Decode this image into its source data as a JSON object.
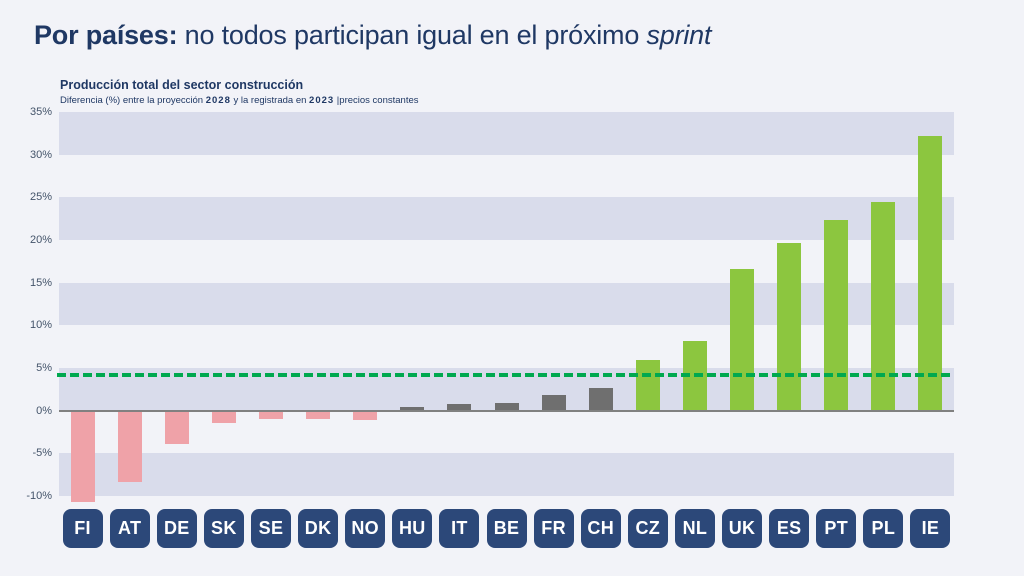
{
  "slide": {
    "title": {
      "bold": "Por países:",
      "regular": " no todos participan igual en el próximo ",
      "italic": "sprint"
    }
  },
  "chart_data": {
    "type": "bar",
    "title": "Producción total del sector construcción",
    "subtitle_parts": [
      "Diferencia (%) entre la proyección ",
      "2028",
      " y la registrada en ",
      "2023",
      " |precios constantes"
    ],
    "categories": [
      "FI",
      "AT",
      "DE",
      "SK",
      "SE",
      "DK",
      "NO",
      "HU",
      "IT",
      "BE",
      "FR",
      "CH",
      "CZ",
      "NL",
      "UK",
      "ES",
      "PT",
      "PL",
      "IE"
    ],
    "values": [
      -10.7,
      -8.4,
      -3.9,
      -1.5,
      -1.0,
      -1.0,
      -1.1,
      0.4,
      0.8,
      0.9,
      1.8,
      2.6,
      5.9,
      8.2,
      16.6,
      19.7,
      22.4,
      24.5,
      32.2
    ],
    "category_groups": [
      "negative",
      "negative",
      "negative",
      "negative",
      "negative",
      "negative",
      "negative",
      "neutral",
      "neutral",
      "neutral",
      "neutral",
      "neutral",
      "positive",
      "positive",
      "positive",
      "positive",
      "positive",
      "positive",
      "positive"
    ],
    "xlabel": "",
    "ylabel": "",
    "ylim": [
      -10,
      35
    ],
    "ytick_step": 5,
    "yticks": [
      35,
      30,
      25,
      20,
      15,
      10,
      5,
      0,
      -5,
      -10
    ],
    "ytick_labels": [
      "35%",
      "30%",
      "25%",
      "20%",
      "15%",
      "10%",
      "5%",
      "0%",
      "-5%",
      "-10%"
    ],
    "grid": "alternating-horizontal-bands",
    "bands": [
      [
        30,
        35
      ],
      [
        20,
        25
      ],
      [
        10,
        15
      ],
      [
        0,
        5
      ],
      [
        -10,
        -5
      ]
    ],
    "legend": "none",
    "reference_line": {
      "value": 4.2,
      "style": "dashed",
      "color": "#00a94f"
    },
    "palette": {
      "negative": "#efa2a8",
      "neutral": "#6f6f6f",
      "positive": "#8cc63f"
    },
    "colors": {
      "band": "#d9dceb",
      "background": "#f2f3f8",
      "zero_line": "#808080",
      "title_navy": "#1f3864",
      "tick_label": "#44546a",
      "chip_background": "#2c4879",
      "chip_text": "#ffffff"
    }
  }
}
